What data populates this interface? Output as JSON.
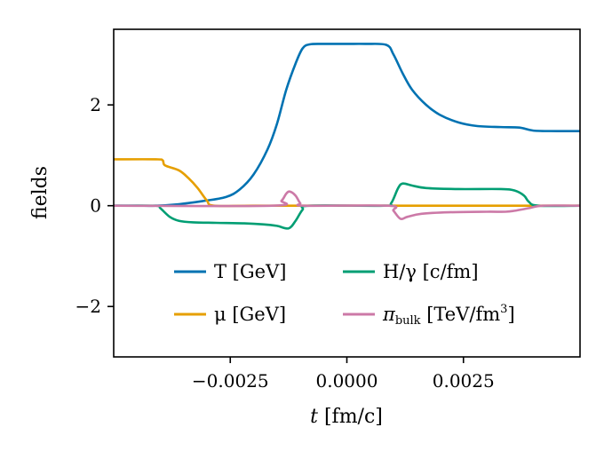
{
  "chart_data": {
    "type": "line",
    "title": "",
    "xlabel": "t [fm/c]",
    "ylabel": "fields",
    "xlim": [
      -0.005,
      0.005
    ],
    "ylim": [
      -3.0,
      3.5
    ],
    "xticks": [
      -0.0025,
      0.0,
      0.0025
    ],
    "xtick_labels": [
      "−0.0025",
      "0.0000",
      "0.0025"
    ],
    "yticks": [
      -2,
      0,
      2
    ],
    "ytick_labels": [
      "−2",
      "0",
      "2"
    ],
    "grid": false,
    "legend_position": "lower-center",
    "series": [
      {
        "name": "T [GeV]",
        "color": "#0072B2",
        "points": [
          [
            -0.005,
            0.0
          ],
          [
            -0.0045,
            0.0
          ],
          [
            -0.0041,
            0.0
          ],
          [
            -0.0036,
            0.03
          ],
          [
            -0.0031,
            0.09
          ],
          [
            -0.0026,
            0.17
          ],
          [
            -0.0023,
            0.32
          ],
          [
            -0.002,
            0.62
          ],
          [
            -0.0017,
            1.12
          ],
          [
            -0.0015,
            1.62
          ],
          [
            -0.0013,
            2.3
          ],
          [
            -0.0011,
            2.82
          ],
          [
            -0.00095,
            3.12
          ],
          [
            -0.0008,
            3.2
          ],
          [
            -0.0005,
            3.21
          ],
          [
            0.0,
            3.21
          ],
          [
            0.0004,
            3.21
          ],
          [
            0.00085,
            3.19
          ],
          [
            0.001,
            3.0
          ],
          [
            0.0012,
            2.62
          ],
          [
            0.0014,
            2.3
          ],
          [
            0.0017,
            2.0
          ],
          [
            0.002,
            1.8
          ],
          [
            0.0024,
            1.65
          ],
          [
            0.0028,
            1.58
          ],
          [
            0.0033,
            1.56
          ],
          [
            0.0037,
            1.55
          ],
          [
            0.004,
            1.49
          ],
          [
            0.0045,
            1.48
          ],
          [
            0.005,
            1.48
          ]
        ]
      },
      {
        "name": "μ [GeV]",
        "color": "#E69F00",
        "points": [
          [
            -0.005,
            0.92
          ],
          [
            -0.0041,
            0.92
          ],
          [
            -0.00395,
            0.9
          ],
          [
            -0.0039,
            0.8
          ],
          [
            -0.0036,
            0.7
          ],
          [
            -0.0034,
            0.55
          ],
          [
            -0.0032,
            0.35
          ],
          [
            -0.003,
            0.1
          ],
          [
            -0.00285,
            0.0
          ],
          [
            -0.002,
            0.0
          ],
          [
            0.0,
            0.0
          ],
          [
            0.005,
            0.0
          ]
        ]
      },
      {
        "name": "H/γ [c/fm]",
        "color": "#009E73",
        "points": [
          [
            -0.005,
            0.0
          ],
          [
            -0.0041,
            0.0
          ],
          [
            -0.004,
            -0.05
          ],
          [
            -0.0038,
            -0.22
          ],
          [
            -0.0036,
            -0.3
          ],
          [
            -0.0033,
            -0.33
          ],
          [
            -0.0028,
            -0.34
          ],
          [
            -0.0022,
            -0.35
          ],
          [
            -0.0018,
            -0.37
          ],
          [
            -0.0015,
            -0.4
          ],
          [
            -0.00125,
            -0.45
          ],
          [
            -0.0011,
            -0.3
          ],
          [
            -0.00095,
            -0.08
          ],
          [
            -0.0008,
            0.0
          ],
          [
            0.0008,
            0.0
          ],
          [
            0.00095,
            0.05
          ],
          [
            0.0011,
            0.35
          ],
          [
            0.0012,
            0.44
          ],
          [
            0.0014,
            0.4
          ],
          [
            0.0017,
            0.35
          ],
          [
            0.0024,
            0.33
          ],
          [
            0.0033,
            0.33
          ],
          [
            0.0036,
            0.3
          ],
          [
            0.0038,
            0.2
          ],
          [
            0.0039,
            0.08
          ],
          [
            0.0041,
            0.0
          ],
          [
            0.005,
            0.0
          ]
        ]
      },
      {
        "name": "π_bulk [TeV/fm³]",
        "color": "#CC79A7",
        "points": [
          [
            -0.005,
            0.0
          ],
          [
            -0.0016,
            0.0
          ],
          [
            -0.0014,
            0.1
          ],
          [
            -0.0013,
            0.24
          ],
          [
            -0.00122,
            0.28
          ],
          [
            -0.0011,
            0.2
          ],
          [
            -0.001,
            0.05
          ],
          [
            -0.0009,
            0.0
          ],
          [
            0.0009,
            0.0
          ],
          [
            0.001,
            -0.1
          ],
          [
            0.00115,
            -0.26
          ],
          [
            0.0013,
            -0.22
          ],
          [
            0.0016,
            -0.16
          ],
          [
            0.0022,
            -0.13
          ],
          [
            0.003,
            -0.12
          ],
          [
            0.0034,
            -0.12
          ],
          [
            0.0036,
            -0.1
          ],
          [
            0.0039,
            -0.05
          ],
          [
            0.0042,
            0.0
          ],
          [
            0.005,
            0.0
          ]
        ]
      }
    ],
    "legend": [
      {
        "label_main": "T [GeV]",
        "label_sub": "",
        "label_tail": "",
        "label_sup": ""
      },
      {
        "label_main": "H/γ [c/fm]",
        "label_sub": "",
        "label_tail": "",
        "label_sup": ""
      },
      {
        "label_main": "μ [GeV]",
        "label_sub": "",
        "label_tail": "",
        "label_sup": ""
      },
      {
        "label_main": "π",
        "label_sub": "bulk",
        "label_tail": " [TeV/fm",
        "label_sup": "3"
      }
    ],
    "legend_tail_close": "]"
  }
}
